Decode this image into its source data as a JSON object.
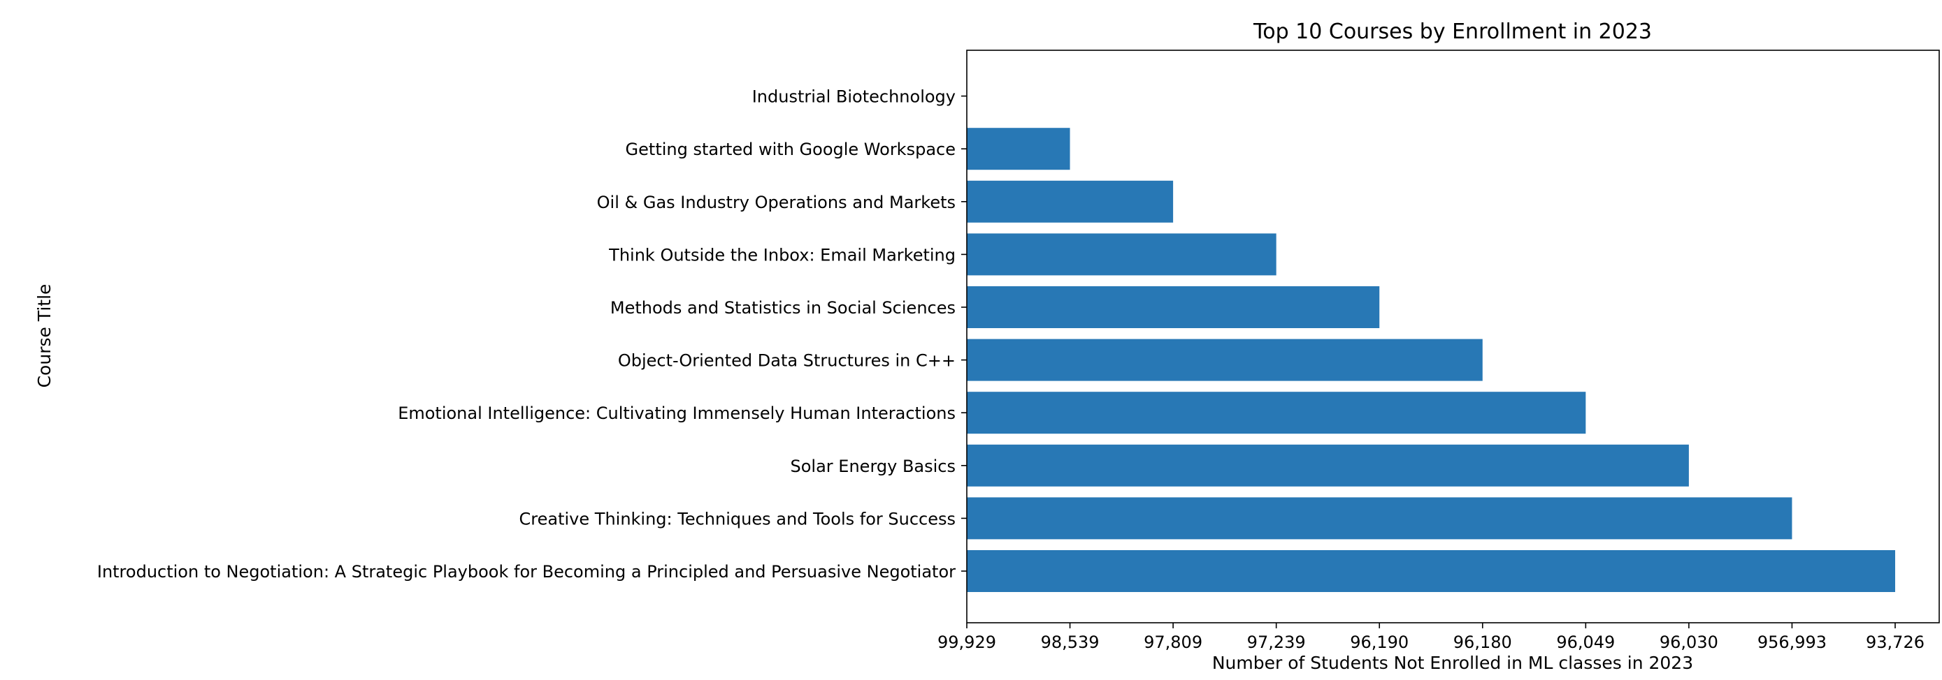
{
  "chart_data": {
    "type": "bar",
    "orientation": "horizontal",
    "title": "Top 10 Courses by Enrollment in 2023",
    "xlabel": "Number of Students Not Enrolled in ML classes in 2023",
    "ylabel": "Course Title",
    "categories": [
      "Introduction to Negotiation: A Strategic Playbook for Becoming a Principled and Persuasive Negotiator",
      "Creative Thinking: Techniques and Tools for Success",
      "Solar Energy Basics",
      "Emotional Intelligence: Cultivating Immensely Human Interactions",
      "Object-Oriented Data Structures in C++",
      "Methods and Statistics in Social Sciences",
      "Think Outside the Inbox: Email Marketing",
      "Oil & Gas Industry Operations and Markets",
      "Getting started with Google Workspace",
      "Industrial Biotechnology"
    ],
    "values": [
      9,
      8,
      7,
      6,
      5,
      4,
      3,
      2,
      1,
      0
    ],
    "x_ticks": [
      "99,929",
      "98,539",
      "97,809",
      "97,239",
      "96,190",
      "96,180",
      "96,049",
      "96,030",
      "956,993",
      "93,726"
    ],
    "xlim": [
      0,
      9
    ],
    "grid": false,
    "colors": {
      "bar": "#2878b5",
      "axis": "#000000"
    }
  }
}
